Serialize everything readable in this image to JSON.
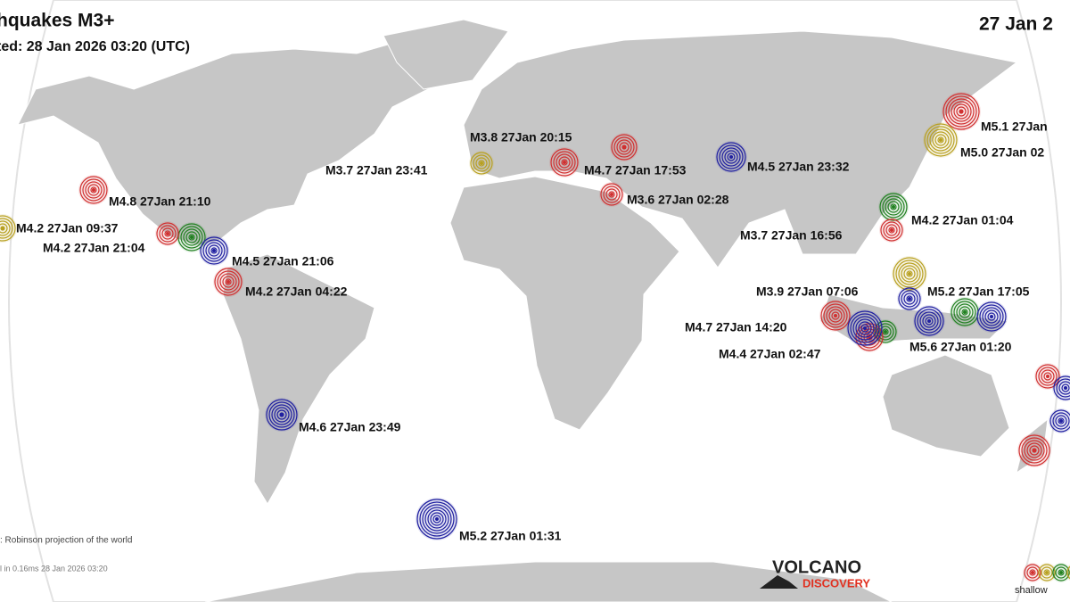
{
  "header": {
    "title": "hquakes M3+",
    "updated": "ted: 28 Jan 2026 03:20 (UTC)",
    "date": "27 Jan 2"
  },
  "quakes": [
    {
      "label": "M3.8 27Jan 20:15"
    },
    {
      "label": "M3.7 27Jan 23:41"
    },
    {
      "label": "M4.7 27Jan 17:53"
    },
    {
      "label": "M4.5 27Jan 23:32"
    },
    {
      "label": "M3.6 27Jan 02:28"
    },
    {
      "label": "M5.1 27Jan"
    },
    {
      "label": "M5.0 27Jan 02"
    },
    {
      "label": "M4.8 27Jan 21:10"
    },
    {
      "label": "M4.2 27Jan 09:37"
    },
    {
      "label": "M4.2 27Jan 21:04"
    },
    {
      "label": "M4.5 27Jan 21:06"
    },
    {
      "label": "M4.2 27Jan 04:22"
    },
    {
      "label": "M4.2 27Jan 01:04"
    },
    {
      "label": "M3.7 27Jan 16:56"
    },
    {
      "label": "M3.9 27Jan 07:06"
    },
    {
      "label": "M5.2 27Jan 17:05"
    },
    {
      "label": "M4.7 27Jan 14:20"
    },
    {
      "label": "M4.4 27Jan 02:47"
    },
    {
      "label": "M5.6 27Jan 01:20"
    },
    {
      "label": "M4.6 27Jan 23:49"
    },
    {
      "label": "M5.2 27Jan 01:31"
    }
  ],
  "footer": {
    "projection": ": Robinson projection of the world",
    "generated": "l in 0.16ms 28 Jan 2026 03:20",
    "logo_top": "VOLCANO",
    "logo_bottom": "DISCOVERY",
    "legend": "shallow"
  }
}
